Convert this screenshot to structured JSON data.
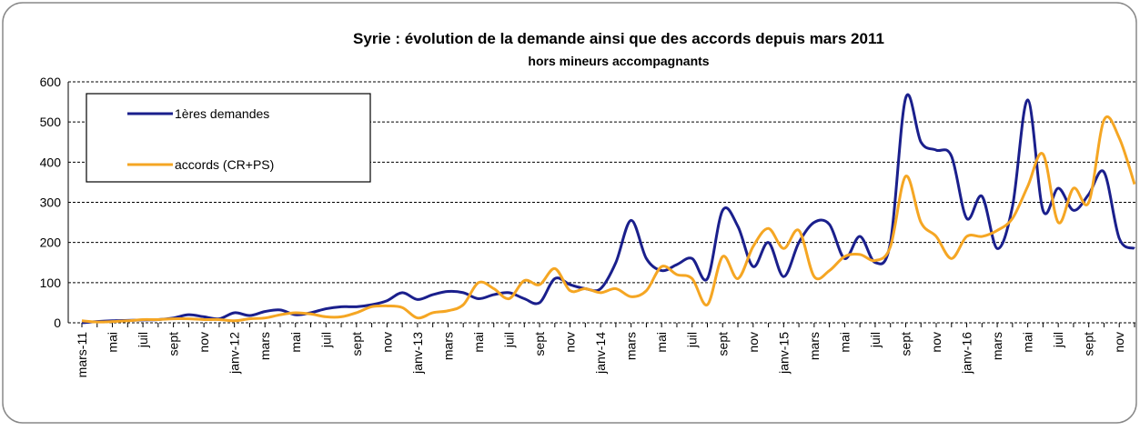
{
  "chart_data": {
    "type": "line",
    "title": "Syrie : évolution  de la demande ainsi que des accords depuis mars 2011",
    "subtitle": "hors mineurs accompagnants",
    "categories": [
      "mars-11",
      null,
      "mai",
      null,
      "juil",
      null,
      "sept",
      null,
      "nov",
      null,
      "janv-12",
      null,
      "mars",
      null,
      "mai",
      null,
      "juil",
      null,
      "sept",
      null,
      "nov",
      null,
      "janv-13",
      null,
      "mars",
      null,
      "mai",
      null,
      "juil",
      null,
      "sept",
      null,
      "nov",
      null,
      "janv-14",
      null,
      "mars",
      null,
      "mai",
      null,
      "juil",
      null,
      "sept",
      null,
      "nov",
      null,
      "janv-15",
      null,
      "mars",
      null,
      "mai",
      null,
      "juil",
      null,
      "sept",
      null,
      "nov",
      null,
      "janv-16",
      null,
      "mars",
      null,
      "mai",
      null,
      "juil",
      null,
      "sept",
      null,
      "nov",
      null
    ],
    "series": [
      {
        "name": "1ères demandes",
        "color": "#1a1f8c",
        "values": [
          0,
          3,
          5,
          6,
          7,
          8,
          12,
          20,
          15,
          10,
          25,
          18,
          28,
          32,
          20,
          25,
          35,
          40,
          40,
          45,
          55,
          75,
          58,
          70,
          78,
          75,
          60,
          70,
          75,
          60,
          50,
          110,
          95,
          85,
          85,
          150,
          255,
          160,
          130,
          145,
          160,
          110,
          280,
          240,
          140,
          200,
          115,
          200,
          250,
          245,
          160,
          215,
          150,
          200,
          560,
          450,
          430,
          415,
          260,
          315,
          185,
          290,
          555,
          280,
          335,
          280,
          320,
          375,
          210,
          185
        ]
      },
      {
        "name": "accords (CR+PS)",
        "color": "#f5a623",
        "values": [
          5,
          2,
          3,
          5,
          8,
          8,
          10,
          10,
          8,
          8,
          5,
          10,
          12,
          20,
          25,
          22,
          15,
          15,
          25,
          40,
          42,
          38,
          12,
          25,
          30,
          45,
          100,
          85,
          60,
          105,
          95,
          135,
          80,
          85,
          75,
          85,
          65,
          80,
          140,
          120,
          110,
          45,
          165,
          110,
          190,
          235,
          185,
          230,
          115,
          130,
          165,
          170,
          155,
          190,
          365,
          250,
          215,
          160,
          215,
          215,
          230,
          260,
          340,
          420,
          250,
          335,
          300,
          505,
          460,
          345
        ]
      }
    ],
    "ylim": [
      0,
      600
    ],
    "yticks": [
      0,
      100,
      200,
      300,
      400,
      500,
      600
    ],
    "grid": true,
    "legend": "upper left"
  }
}
